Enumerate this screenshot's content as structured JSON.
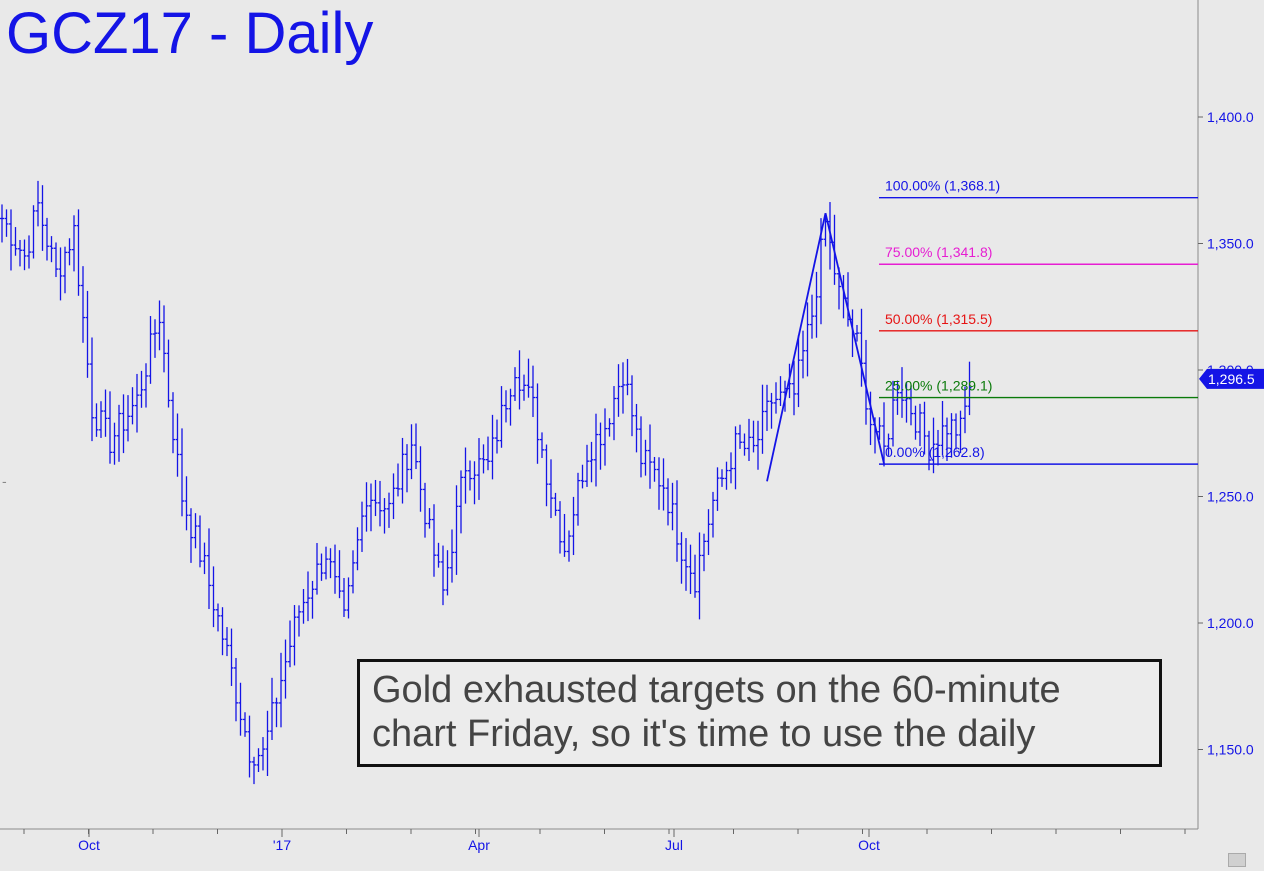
{
  "chart_title": "GCZ17 - Daily",
  "annotation": {
    "line1": "Gold exhausted targets on the 60-minute",
    "line2": "chart Friday, so it's time to use the daily"
  },
  "chart_data": {
    "type": "ohlc-bar",
    "title": "GCZ17 - Daily",
    "ylim": [
      1120,
      1450
    ],
    "y_ticks": [
      {
        "value": 1150,
        "label": "1,150.0"
      },
      {
        "value": 1200,
        "label": "1,200.0"
      },
      {
        "value": 1250,
        "label": "1,250.0"
      },
      {
        "value": 1300,
        "label": "1,300.0"
      },
      {
        "value": 1350,
        "label": "1,350.0"
      },
      {
        "value": 1400,
        "label": "1,400.0"
      }
    ],
    "x_month_labels": [
      "Oct",
      "'17",
      "Apr",
      "Jul",
      "Oct"
    ],
    "last_price": {
      "value": 1296.5,
      "label": "1,296.5"
    },
    "fib_levels": [
      {
        "pct_label": "100.00%",
        "value": 1368.1,
        "value_label": "(1,368.1)",
        "color": "#1414e6"
      },
      {
        "pct_label": "75.00%",
        "value": 1341.8,
        "value_label": "(1,341.8)",
        "color": "#e61ed2"
      },
      {
        "pct_label": "50.00%",
        "value": 1315.5,
        "value_label": "(1,315.5)",
        "color": "#e61414"
      },
      {
        "pct_label": "25.00%",
        "value": 1289.1,
        "value_label": "(1,289.1)",
        "color": "#0a7a0a"
      },
      {
        "pct_label": "0.00%",
        "value": 1262.8,
        "value_label": "(1,262.8)",
        "color": "#1414e6"
      }
    ],
    "pattern_points": [
      {
        "bar": 170,
        "price": 1256
      },
      {
        "bar": 183,
        "price": 1362
      },
      {
        "bar": 196,
        "price": 1263
      }
    ],
    "price_anchors": [
      {
        "bar": 0,
        "price": 1360
      },
      {
        "bar": 5,
        "price": 1345
      },
      {
        "bar": 8,
        "price": 1365
      },
      {
        "bar": 12,
        "price": 1338
      },
      {
        "bar": 16,
        "price": 1355
      },
      {
        "bar": 20,
        "price": 1285
      },
      {
        "bar": 24,
        "price": 1272
      },
      {
        "bar": 30,
        "price": 1288
      },
      {
        "bar": 35,
        "price": 1322
      },
      {
        "bar": 37,
        "price": 1290
      },
      {
        "bar": 40,
        "price": 1250
      },
      {
        "bar": 45,
        "price": 1222
      },
      {
        "bar": 50,
        "price": 1188
      },
      {
        "bar": 55,
        "price": 1150
      },
      {
        "bar": 58,
        "price": 1148
      },
      {
        "bar": 62,
        "price": 1178
      },
      {
        "bar": 66,
        "price": 1205
      },
      {
        "bar": 72,
        "price": 1228
      },
      {
        "bar": 76,
        "price": 1200
      },
      {
        "bar": 81,
        "price": 1252
      },
      {
        "bar": 86,
        "price": 1245
      },
      {
        "bar": 91,
        "price": 1272
      },
      {
        "bar": 95,
        "price": 1235
      },
      {
        "bar": 98,
        "price": 1212
      },
      {
        "bar": 103,
        "price": 1263
      },
      {
        "bar": 108,
        "price": 1262
      },
      {
        "bar": 114,
        "price": 1302
      },
      {
        "bar": 118,
        "price": 1285
      },
      {
        "bar": 122,
        "price": 1252
      },
      {
        "bar": 125,
        "price": 1230
      },
      {
        "bar": 130,
        "price": 1268
      },
      {
        "bar": 134,
        "price": 1278
      },
      {
        "bar": 138,
        "price": 1300
      },
      {
        "bar": 142,
        "price": 1265
      },
      {
        "bar": 147,
        "price": 1255
      },
      {
        "bar": 151,
        "price": 1230
      },
      {
        "bar": 154,
        "price": 1218
      },
      {
        "bar": 158,
        "price": 1248
      },
      {
        "bar": 163,
        "price": 1270
      },
      {
        "bar": 167,
        "price": 1268
      },
      {
        "bar": 171,
        "price": 1288
      },
      {
        "bar": 176,
        "price": 1290
      },
      {
        "bar": 180,
        "price": 1322
      },
      {
        "bar": 183,
        "price": 1358
      },
      {
        "bar": 186,
        "price": 1330
      },
      {
        "bar": 190,
        "price": 1310
      },
      {
        "bar": 193,
        "price": 1280
      },
      {
        "bar": 196,
        "price": 1268
      },
      {
        "bar": 199,
        "price": 1295
      },
      {
        "bar": 202,
        "price": 1285
      },
      {
        "bar": 206,
        "price": 1270
      },
      {
        "bar": 210,
        "price": 1278
      },
      {
        "bar": 213,
        "price": 1276
      },
      {
        "bar": 215,
        "price": 1293
      }
    ]
  }
}
